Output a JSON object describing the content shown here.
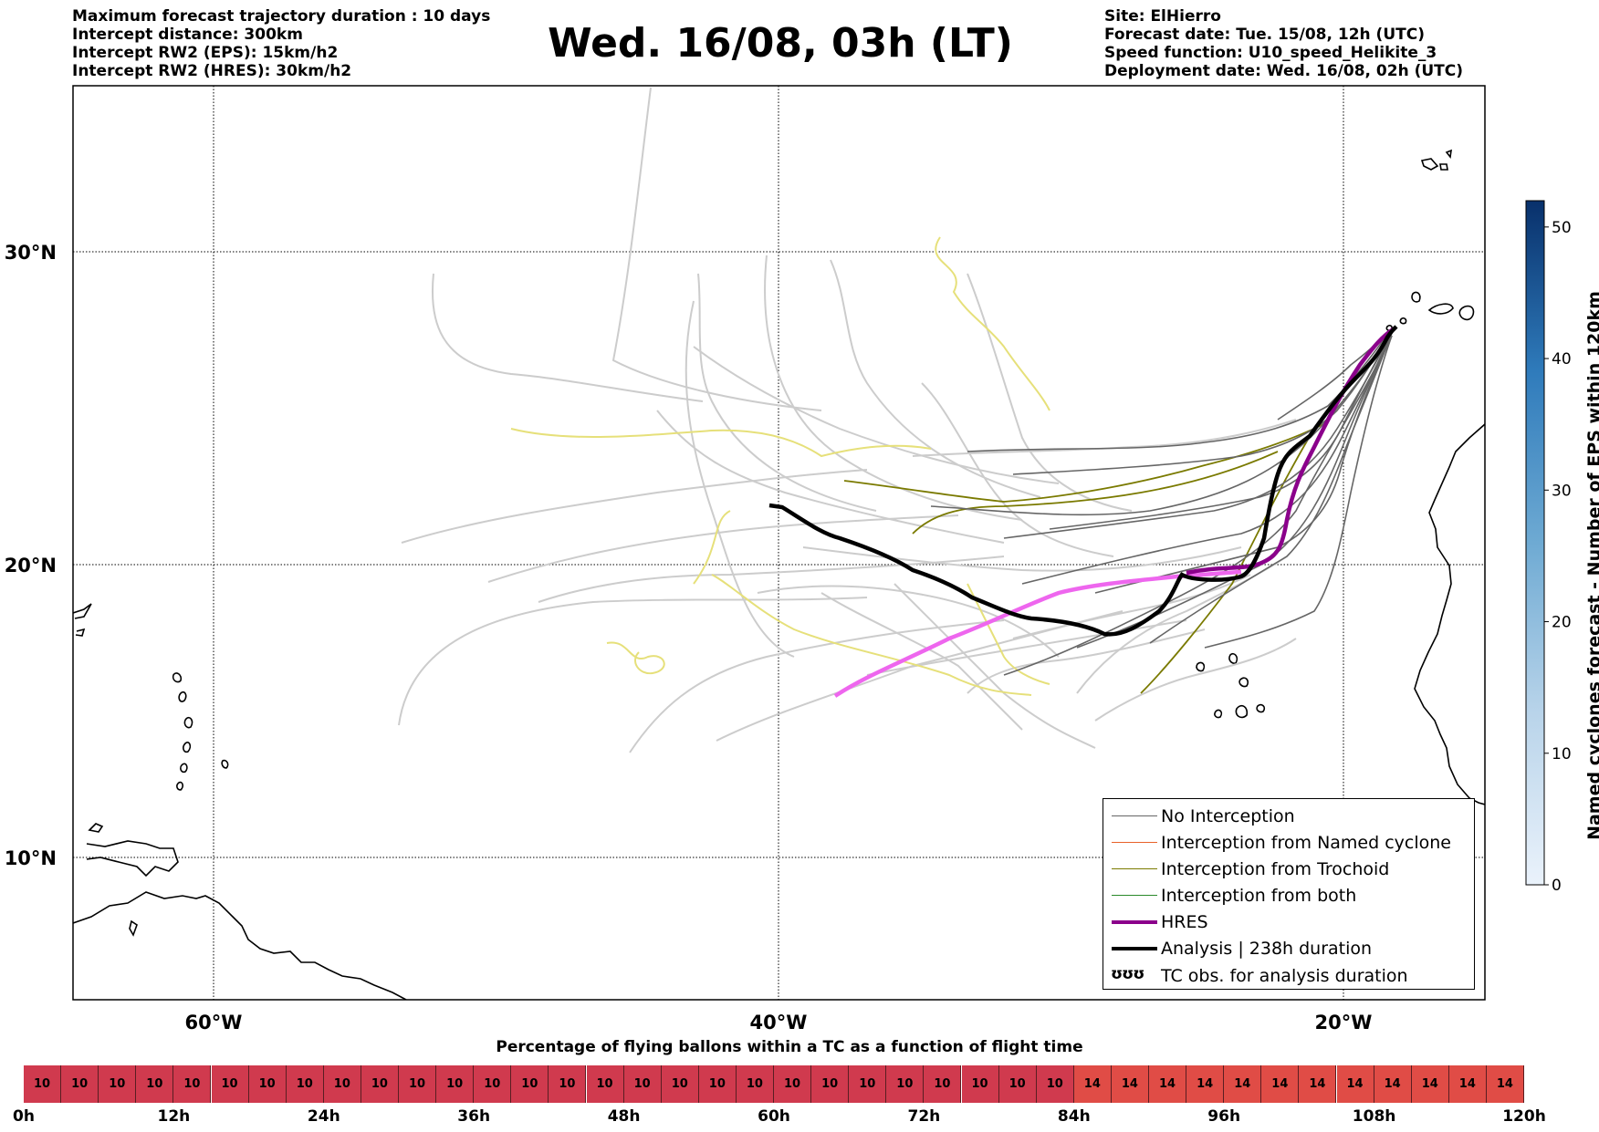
{
  "header_left": [
    "Maximum forecast trajectory duration : 10 days",
    "Intercept distance: 300km",
    "Intercept RW2 (EPS):  15km/h2",
    "Intercept RW2 (HRES): 30km/h2"
  ],
  "header_right": [
    "Site: ElHierro",
    "Forecast date: Tue. 15/08, 12h (UTC)",
    "Speed function: U10_speed_Helikite_3",
    "Deployment date: Wed. 16/08, 02h (UTC)"
  ],
  "title": "Wed. 16/08, 03h (LT)",
  "map": {
    "lat_labels": [
      "30°N",
      "20°N",
      "10°N"
    ],
    "lon_labels": [
      "60°W",
      "40°W",
      "20°W"
    ],
    "colors": {
      "no_interception": "#666666",
      "named_cyclone": "#e8622a",
      "trochoid": "#7a7a00",
      "both": "#2a8a2a",
      "hres": "#8b008b",
      "analysis": "#000000",
      "faint_track": "#cccccc",
      "faint_yellow": "#e6e07a",
      "hres_pink": "#ee66ee"
    }
  },
  "legend": [
    {
      "key": "no_interception",
      "label": "No Interception",
      "style": "thin-gray"
    },
    {
      "key": "named_cyclone",
      "label": "Interception from Named cyclone",
      "style": "thin-orange"
    },
    {
      "key": "trochoid",
      "label": "Interception from Trochoid",
      "style": "thin-olive"
    },
    {
      "key": "both",
      "label": "Interception from both",
      "style": "thin-green"
    },
    {
      "key": "hres",
      "label": "HRES",
      "style": "thick-purple"
    },
    {
      "key": "analysis",
      "label": "Analysis | 238h duration",
      "style": "thick-black"
    },
    {
      "key": "tc_obs",
      "label": "TC obs. for analysis duration",
      "style": "symbol",
      "symbol": "ʊʊʊ"
    }
  ],
  "colorbar": {
    "title": "Named cyclones forecast - Number of EPS within 120km",
    "ticks": [
      "0",
      "10",
      "20",
      "30",
      "40",
      "50"
    ],
    "min": 0,
    "max": 52
  },
  "time_bar": {
    "title": "Percentage of flying ballons within a TC as a function of flight time",
    "cells": [
      "10",
      "10",
      "10",
      "10",
      "10",
      "10",
      "10",
      "10",
      "10",
      "10",
      "10",
      "10",
      "10",
      "10",
      "10",
      "10",
      "10",
      "10",
      "10",
      "10",
      "10",
      "10",
      "10",
      "10",
      "10",
      "10",
      "10",
      "10",
      "14",
      "14",
      "14",
      "14",
      "14",
      "14",
      "14",
      "14",
      "14",
      "14",
      "14",
      "14"
    ],
    "colors": {
      "10": "#d03a4e",
      "14": "#e04c46"
    },
    "time_labels": [
      "0h",
      "12h",
      "24h",
      "36h",
      "48h",
      "60h",
      "72h",
      "84h",
      "96h",
      "108h",
      "120h"
    ]
  }
}
